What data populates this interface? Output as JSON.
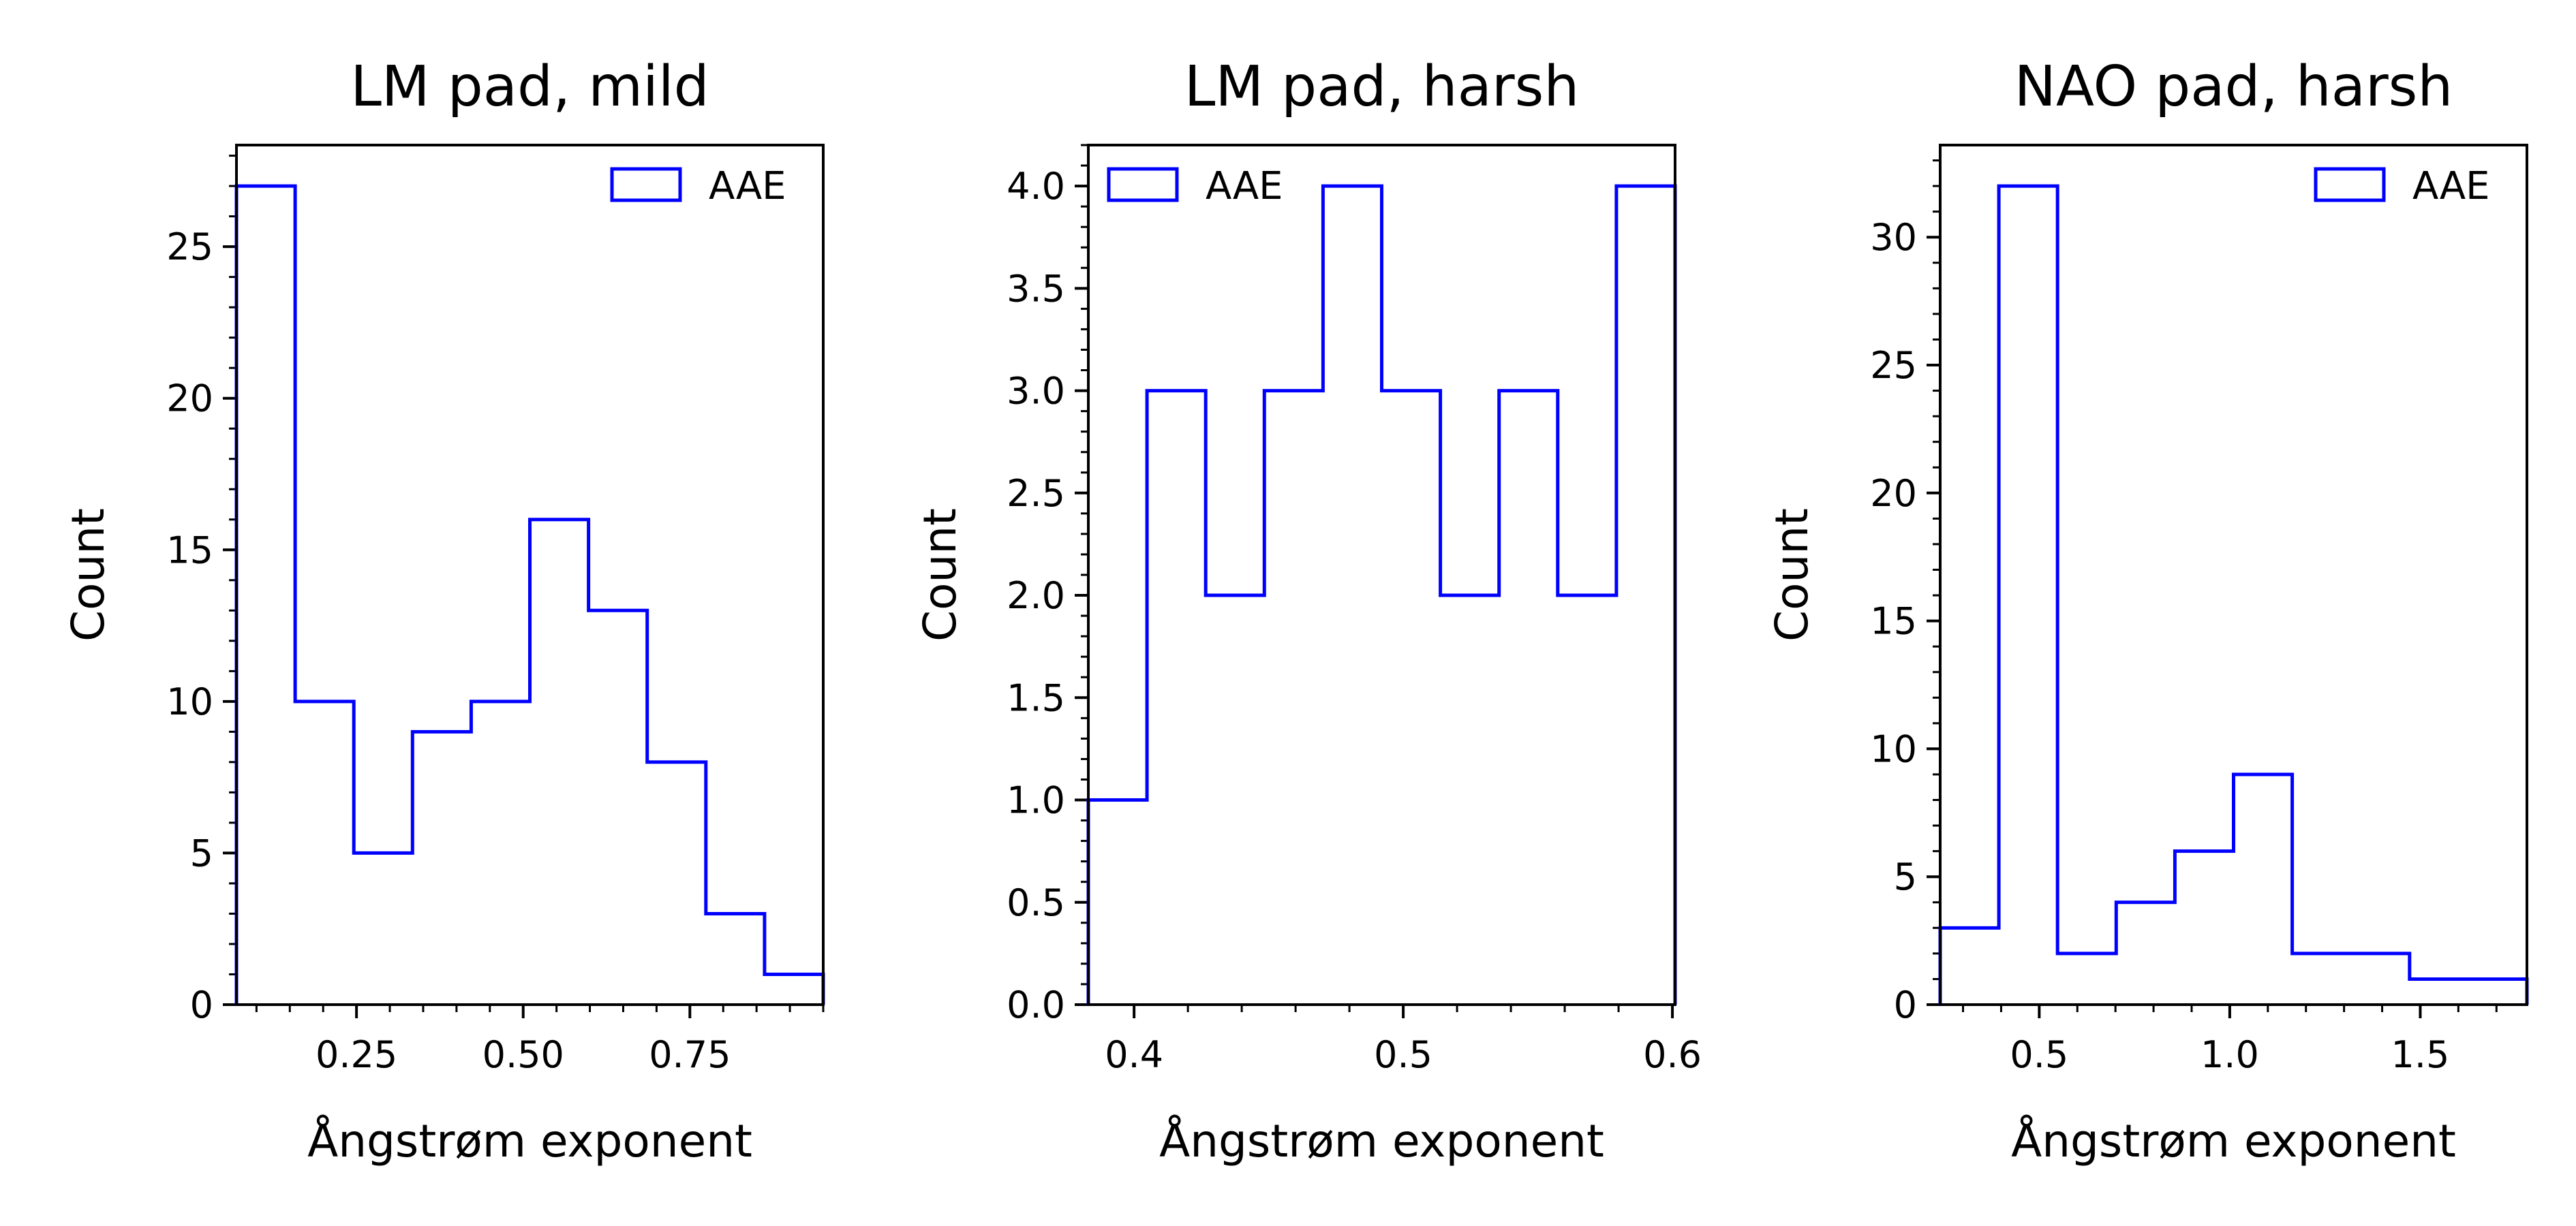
{
  "chart_data": [
    {
      "type": "histogram",
      "title": "LM pad, mild",
      "xlabel": "Ångstrøm exponent",
      "ylabel": "Count",
      "bin_edges": [
        0.07,
        0.158,
        0.246,
        0.334,
        0.422,
        0.51,
        0.598,
        0.686,
        0.774,
        0.862,
        0.95
      ],
      "counts": [
        27,
        10,
        5,
        9,
        10,
        16,
        13,
        8,
        3,
        1
      ],
      "series": [
        {
          "name": "AAE",
          "color": "#0000ff"
        }
      ],
      "xlim": [
        0.07,
        0.95
      ],
      "ylim": [
        0,
        28.35
      ],
      "xticks": [
        0.25,
        0.5,
        0.75
      ],
      "xtick_labels": [
        "0.25",
        "0.50",
        "0.75"
      ],
      "yticks": [
        0,
        5,
        10,
        15,
        20,
        25
      ],
      "ytick_labels": [
        "0",
        "5",
        "10",
        "15",
        "20",
        "25"
      ],
      "legend": {
        "label": "AAE",
        "position": "top-right"
      },
      "grid": false
    },
    {
      "type": "histogram",
      "title": "LM pad, harsh",
      "xlabel": "Ångstrøm exponent",
      "ylabel": "Count",
      "bin_edges": [
        0.383,
        0.4048,
        0.4266,
        0.4484,
        0.4702,
        0.492,
        0.5138,
        0.5356,
        0.5574,
        0.5792,
        0.601
      ],
      "counts": [
        1,
        3,
        2,
        3,
        4,
        3,
        2,
        3,
        2,
        4
      ],
      "series": [
        {
          "name": "AAE",
          "color": "#0000ff"
        }
      ],
      "xlim": [
        0.383,
        0.601
      ],
      "ylim": [
        0,
        4.2
      ],
      "xticks": [
        0.4,
        0.5,
        0.6
      ],
      "xtick_labels": [
        "0.4",
        "0.5",
        "0.6"
      ],
      "yticks": [
        0,
        0.5,
        1,
        1.5,
        2,
        2.5,
        3,
        3.5,
        4
      ],
      "ytick_labels": [
        "0.0",
        "0.5",
        "1.0",
        "1.5",
        "2.0",
        "2.5",
        "3.0",
        "3.5",
        "4.0"
      ],
      "legend": {
        "label": "AAE",
        "position": "top-left"
      },
      "grid": false
    },
    {
      "type": "histogram",
      "title": "NAO pad, harsh",
      "xlabel": "Ångstrøm exponent",
      "ylabel": "Count",
      "bin_edges": [
        0.24,
        0.394,
        0.548,
        0.702,
        0.856,
        1.01,
        1.164,
        1.318,
        1.472,
        1.626,
        1.78
      ],
      "counts": [
        3,
        32,
        2,
        4,
        6,
        9,
        2,
        2,
        1,
        1
      ],
      "series": [
        {
          "name": "AAE",
          "color": "#0000ff"
        }
      ],
      "xlim": [
        0.24,
        1.78
      ],
      "ylim": [
        0,
        33.6
      ],
      "xticks": [
        0.5,
        1.0,
        1.5
      ],
      "xtick_labels": [
        "0.5",
        "1.0",
        "1.5"
      ],
      "yticks": [
        0,
        5,
        10,
        15,
        20,
        25,
        30
      ],
      "ytick_labels": [
        "0",
        "5",
        "10",
        "15",
        "20",
        "25",
        "30"
      ],
      "legend": {
        "label": "AAE",
        "position": "top-right"
      },
      "grid": false
    }
  ]
}
